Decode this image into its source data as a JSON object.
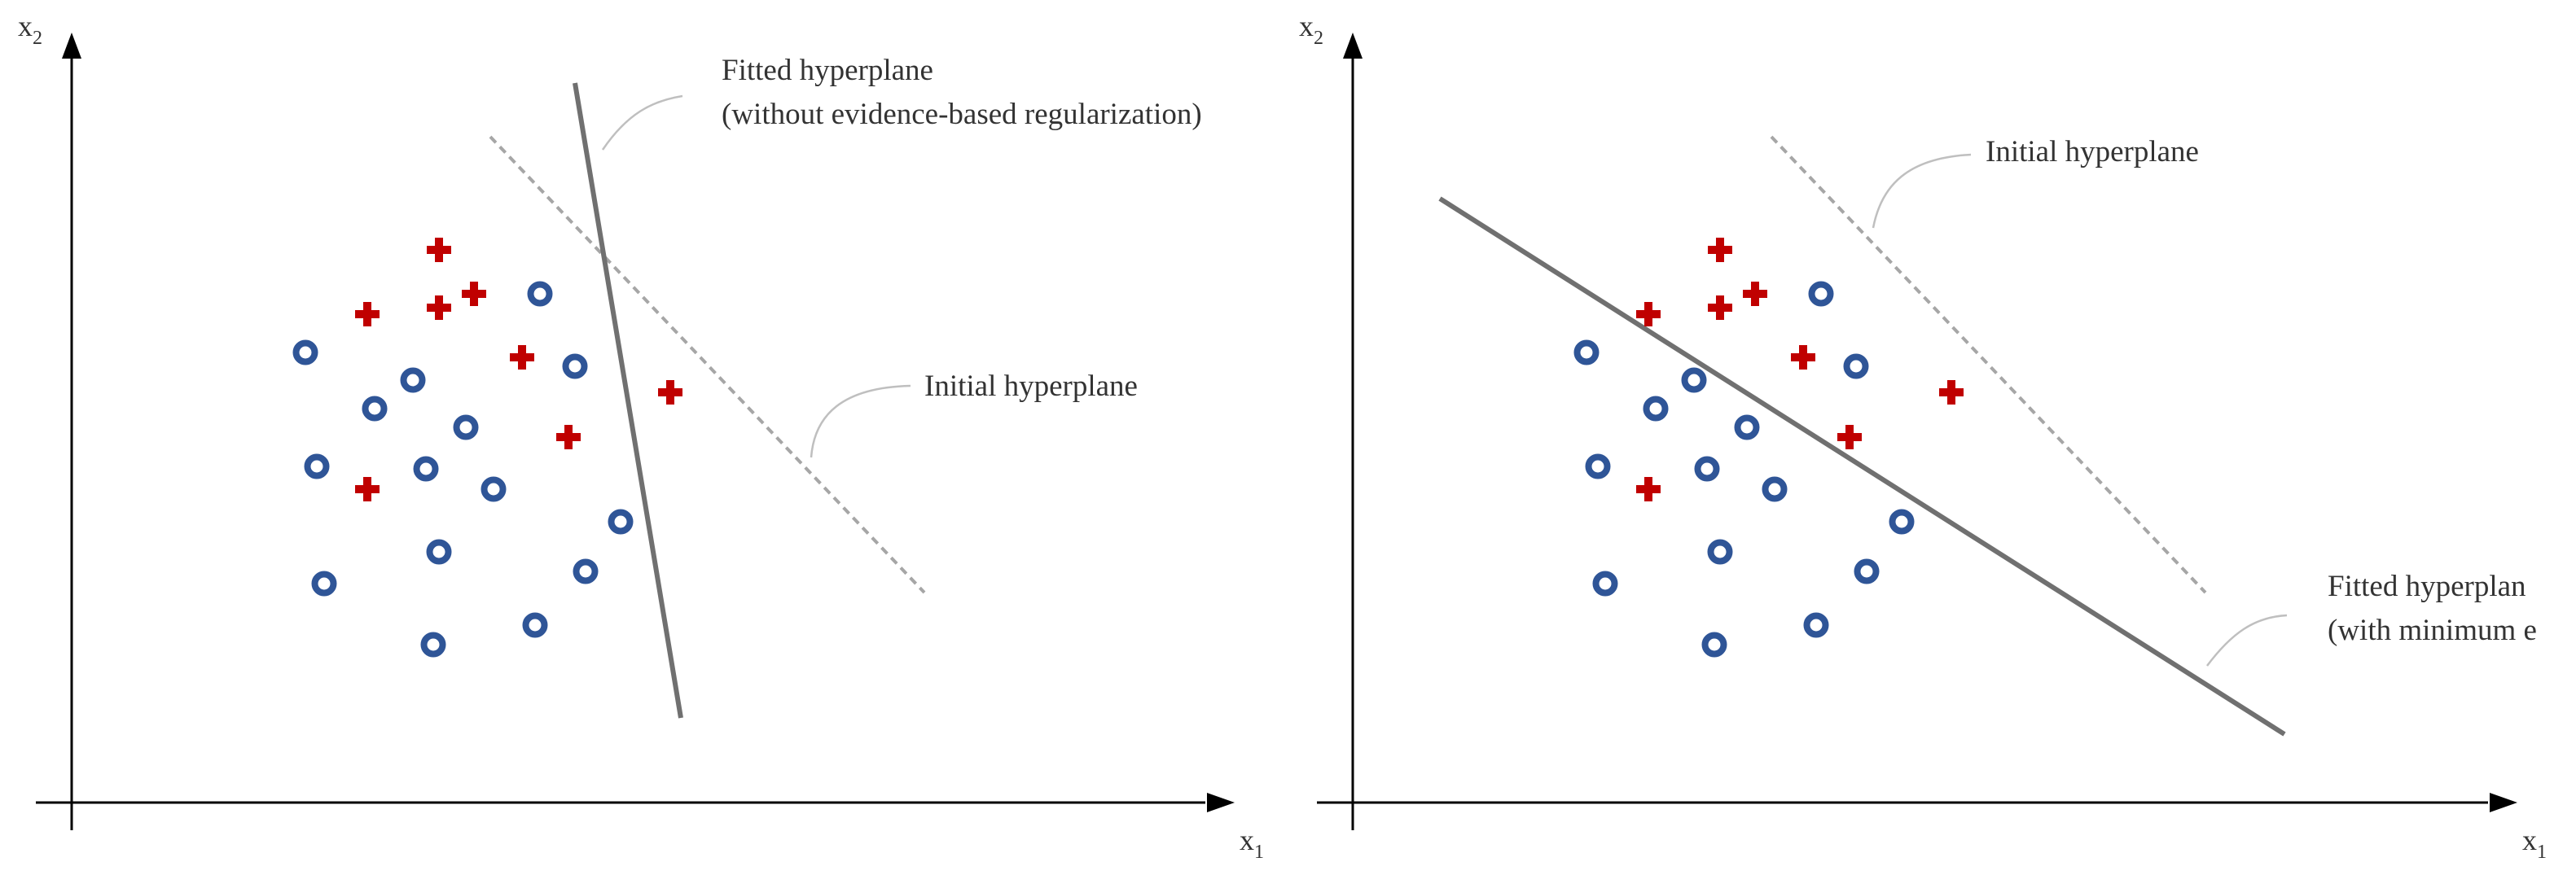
{
  "panels": [
    {
      "id": "left",
      "axis_x": {
        "main": "x",
        "sub": "1"
      },
      "axis_y": {
        "main": "x",
        "sub": "2"
      },
      "labels": [
        {
          "key": "fitted",
          "lines": [
            "Fitted hyperplane",
            "(without evidence-based regularization)"
          ]
        },
        {
          "key": "initial",
          "lines": [
            "Initial hyperplane"
          ]
        }
      ]
    },
    {
      "id": "right",
      "axis_x": {
        "main": "x",
        "sub": "1"
      },
      "axis_y": {
        "main": "x",
        "sub": "2"
      },
      "labels": [
        {
          "key": "initial",
          "lines": [
            "Initial hyperplane"
          ]
        },
        {
          "key": "fitted",
          "lines": [
            "Fitted hyperplan",
            "(with minimum e"
          ]
        }
      ]
    }
  ],
  "classes": [
    {
      "name": "plus",
      "marker": "plus-icon",
      "color": "#c00000"
    },
    {
      "name": "circle",
      "marker": "ring-icon",
      "color": "#2f5597"
    }
  ],
  "colors": {
    "axis": "#000000",
    "fitted_line": "#707070",
    "initial_line": "#a6a6a6",
    "callout": "#bfbfbf"
  }
}
